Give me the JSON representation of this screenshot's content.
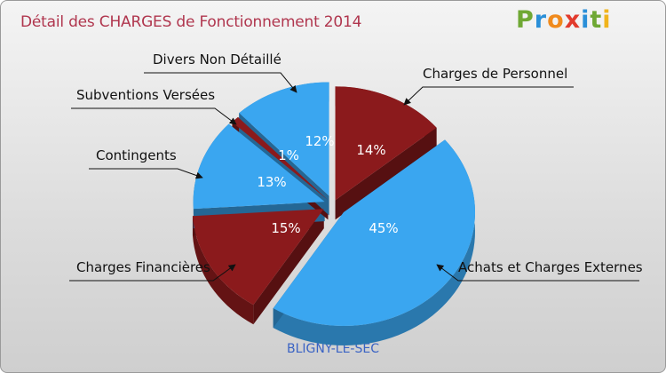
{
  "chart_data": {
    "type": "pie",
    "title": "Détail des CHARGES de Fonctionnement 2014",
    "subtitle": "BLIGNY-LE-SEC",
    "slices": [
      {
        "label": "Charges de Personnel",
        "value": 14,
        "pct_label": "14%",
        "color": "#8b1a1c"
      },
      {
        "label": "Achats et Charges Externes",
        "value": 45,
        "pct_label": "45%",
        "color": "#3aa6f0"
      },
      {
        "label": "Charges Financières",
        "value": 15,
        "pct_label": "15%",
        "color": "#8b1a1c"
      },
      {
        "label": "Contingents",
        "value": 13,
        "pct_label": "13%",
        "color": "#3aa6f0"
      },
      {
        "label": "Subventions Versées",
        "value": 1,
        "pct_label": "1%",
        "color": "#8b1a1c"
      },
      {
        "label": "Divers Non Détaillé",
        "value": 12,
        "pct_label": "12%",
        "color": "#3aa6f0"
      }
    ]
  },
  "logo": {
    "p": "P",
    "r": "r",
    "o": "o",
    "x": "x",
    "i": "i",
    "t": "t",
    "i2": "i"
  }
}
